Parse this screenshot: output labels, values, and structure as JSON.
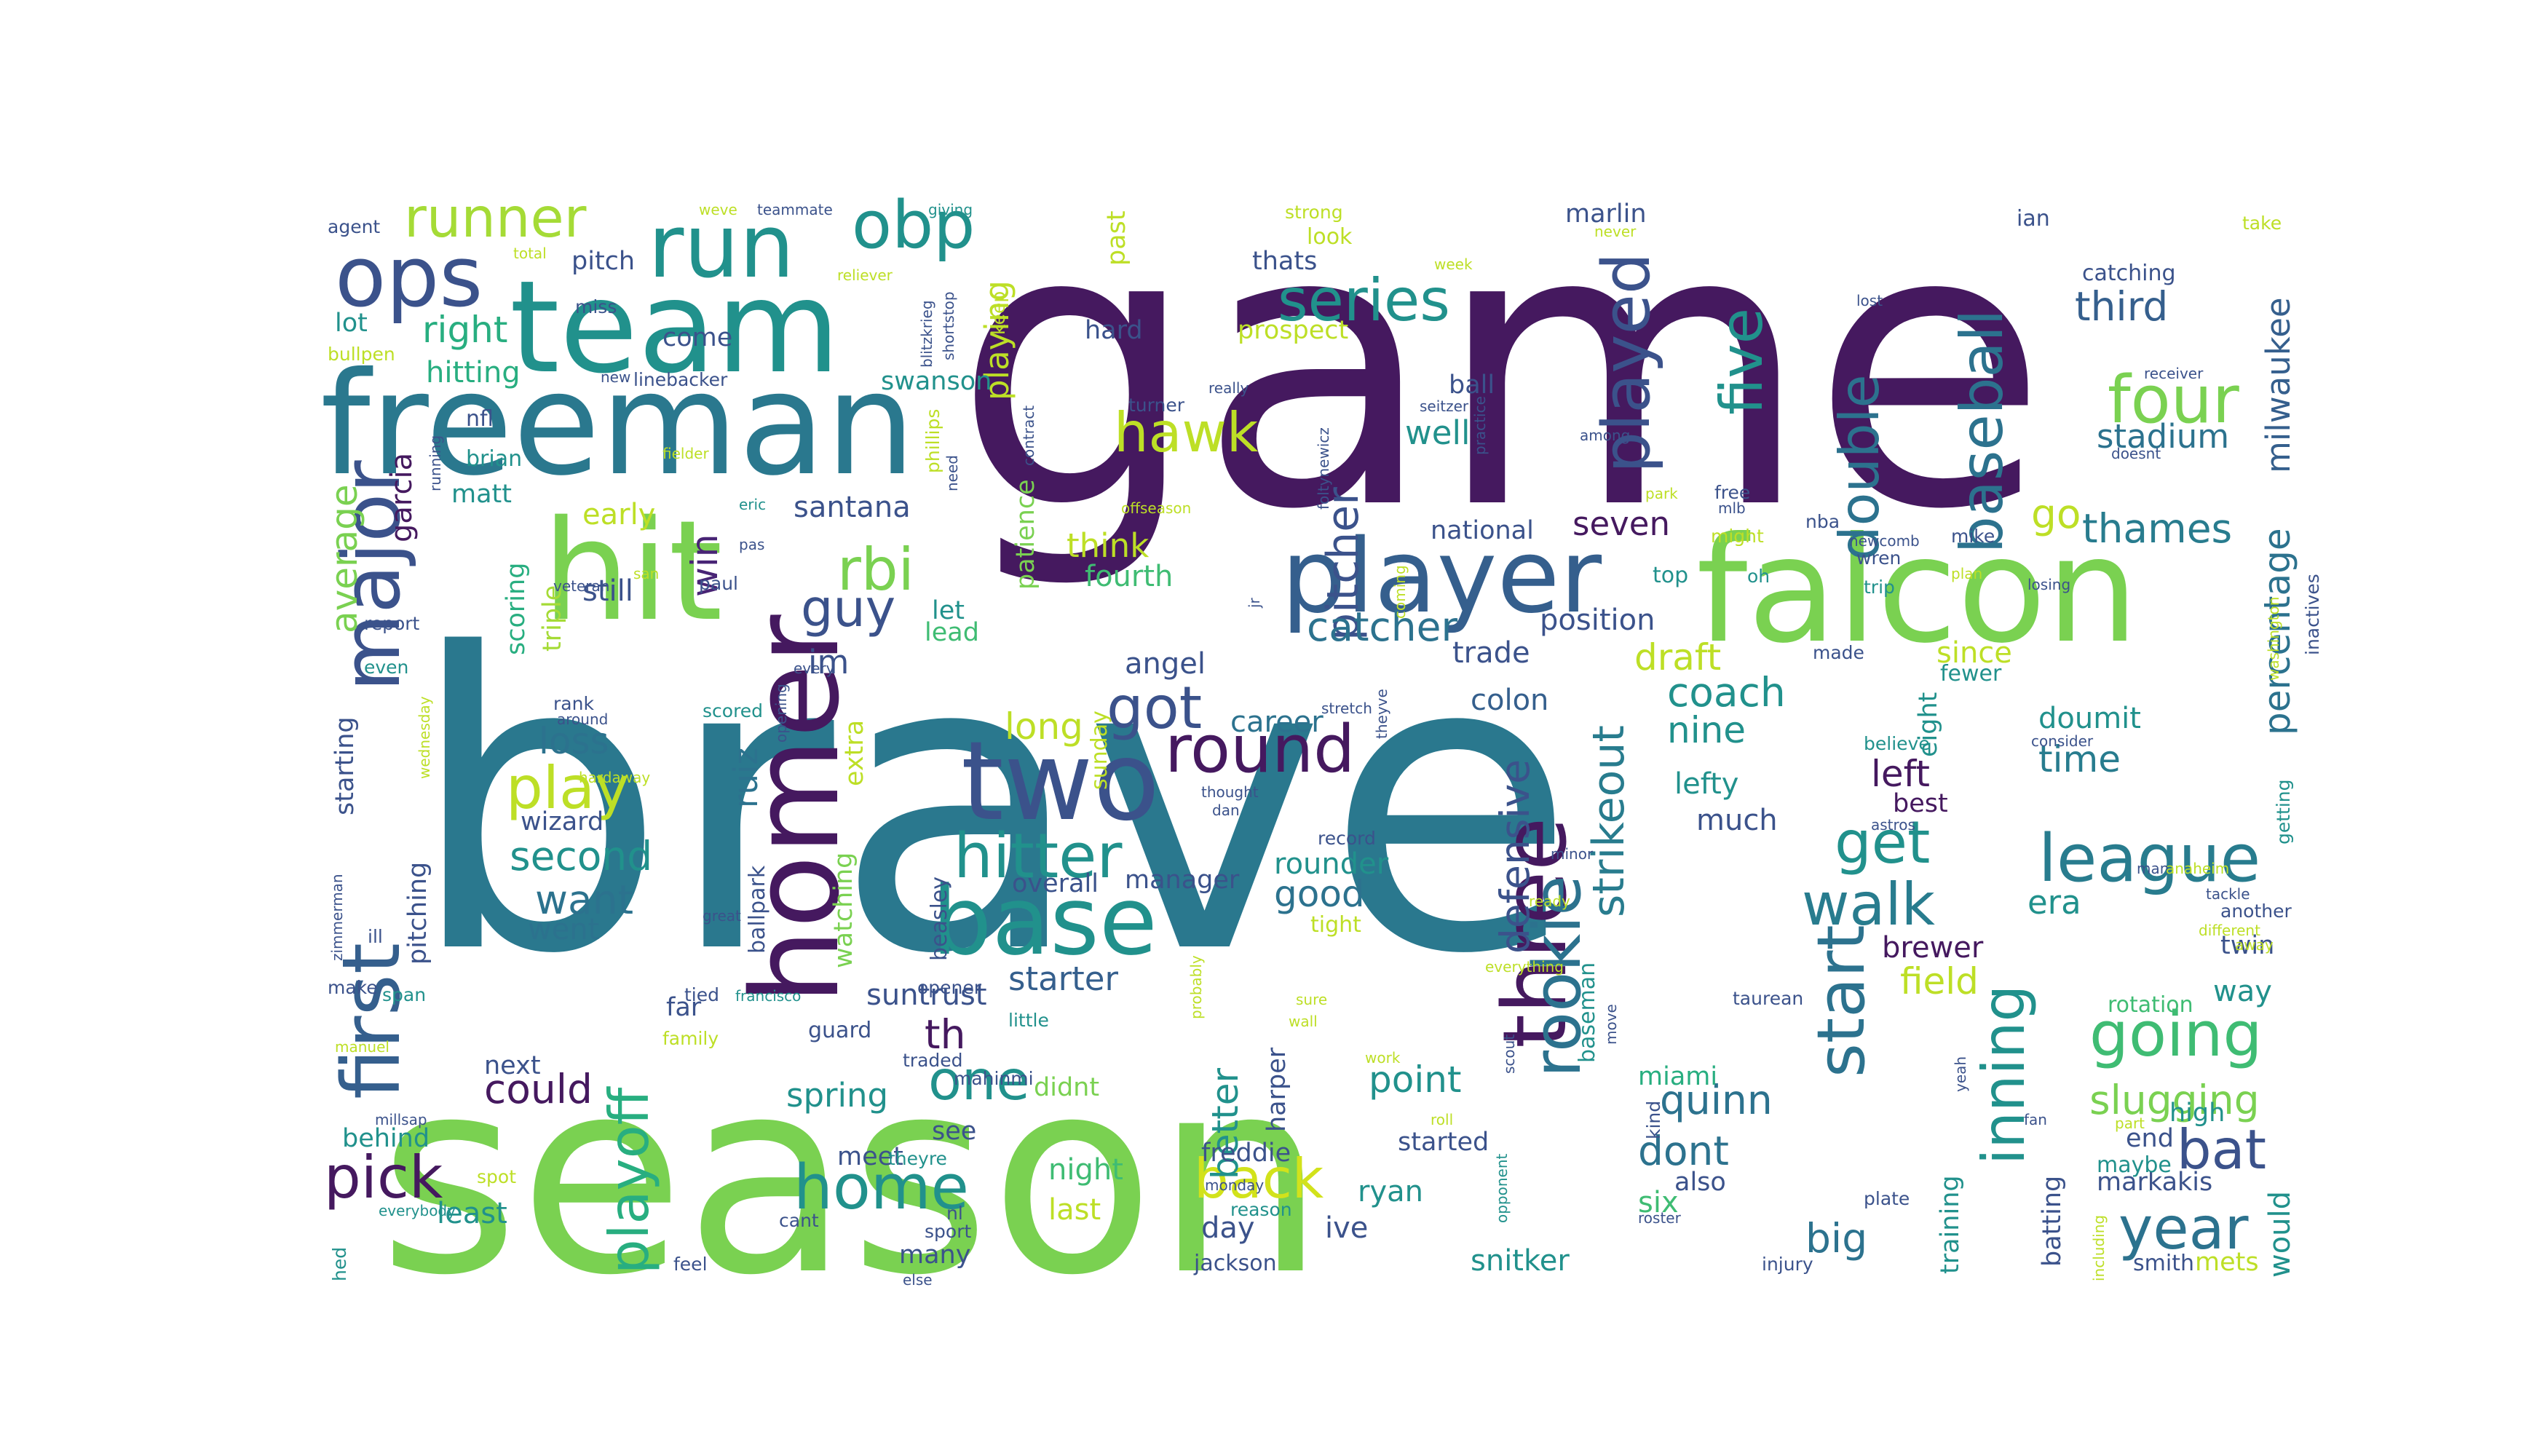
{
  "palette": {
    "deep_purple": "#45195f",
    "purple": "#482475",
    "indigo": "#414487",
    "slate_blue": "#3b528b",
    "steel_blue": "#355f8d",
    "blue_teal": "#2c728e",
    "teal": "#287c8e",
    "sea_teal": "#21918c",
    "green_teal": "#28ae80",
    "green": "#3fbc73",
    "lime_green": "#7ad151",
    "light_lime": "#a5db36",
    "yellow_green": "#bddf26",
    "yellow": "#d2e21b"
  },
  "words": [
    {
      "text": "brave",
      "color": "#2a788e"
    },
    {
      "text": "game",
      "color": "#45195f"
    },
    {
      "text": "season",
      "color": "#7ad151"
    },
    {
      "text": "freeman",
      "color": "#2a788e"
    },
    {
      "text": "team",
      "color": "#21918c"
    },
    {
      "text": "falcon",
      "color": "#7ad151"
    },
    {
      "text": "player",
      "color": "#355f8d"
    },
    {
      "text": "hit",
      "color": "#7ad151"
    },
    {
      "text": "homer",
      "color": "#45195f"
    },
    {
      "text": "base",
      "color": "#21918c"
    },
    {
      "text": "two",
      "color": "#3b528b"
    },
    {
      "text": "three",
      "color": "#45195f"
    },
    {
      "text": "run",
      "color": "#21918c"
    },
    {
      "text": "ops",
      "color": "#3b528b"
    },
    {
      "text": "obp",
      "color": "#21918c"
    },
    {
      "text": "runner",
      "color": "#a5db36"
    },
    {
      "text": "first",
      "color": "#355f8d"
    },
    {
      "text": "major",
      "color": "#3b528b"
    },
    {
      "text": "rbi",
      "color": "#7ad151"
    },
    {
      "text": "guy",
      "color": "#3b528b"
    },
    {
      "text": "series",
      "color": "#21918c"
    },
    {
      "text": "played",
      "color": "#3b528b"
    },
    {
      "text": "five",
      "color": "#21918c"
    },
    {
      "text": "baseball",
      "color": "#2c728e"
    },
    {
      "text": "four",
      "color": "#7ad151"
    },
    {
      "text": "double",
      "color": "#2c728e"
    },
    {
      "text": "go",
      "color": "#bddf26"
    },
    {
      "text": "hawk",
      "color": "#bddf26"
    },
    {
      "text": "pitcher",
      "color": "#3b528b"
    },
    {
      "text": "catcher",
      "color": "#2c728e"
    },
    {
      "text": "third",
      "color": "#355f8d"
    },
    {
      "text": "stadium",
      "color": "#2c728e"
    },
    {
      "text": "milwaukee",
      "color": "#355f8d"
    },
    {
      "text": "thames",
      "color": "#287c8e"
    },
    {
      "text": "percentage",
      "color": "#2c728e"
    },
    {
      "text": "got",
      "color": "#3b528b"
    },
    {
      "text": "round",
      "color": "#45195f"
    },
    {
      "text": "hitter",
      "color": "#21918c"
    },
    {
      "text": "rookie",
      "color": "#2c728e"
    },
    {
      "text": "start",
      "color": "#2c728e"
    },
    {
      "text": "strikeout",
      "color": "#287c8e"
    },
    {
      "text": "defensive",
      "color": "#3b528b"
    },
    {
      "text": "league",
      "color": "#287c8e"
    },
    {
      "text": "walk",
      "color": "#287c8e"
    },
    {
      "text": "get",
      "color": "#21918c"
    },
    {
      "text": "going",
      "color": "#3fbc73"
    },
    {
      "text": "slugging",
      "color": "#7ad151"
    },
    {
      "text": "bat",
      "color": "#3b528b"
    },
    {
      "text": "year",
      "color": "#2c728e"
    },
    {
      "text": "inning",
      "color": "#21918c"
    },
    {
      "text": "play",
      "color": "#bddf26"
    },
    {
      "text": "playoff",
      "color": "#28ae80"
    },
    {
      "text": "pick",
      "color": "#45195f"
    },
    {
      "text": "home",
      "color": "#21918c"
    },
    {
      "text": "back",
      "color": "#d2e21b"
    },
    {
      "text": "one",
      "color": "#21918c"
    },
    {
      "text": "could",
      "color": "#45195f"
    },
    {
      "text": "average",
      "color": "#7ad151"
    },
    {
      "text": "second",
      "color": "#21918c"
    },
    {
      "text": "want",
      "color": "#2c728e"
    },
    {
      "text": "loss",
      "color": "#2c728e"
    },
    {
      "text": "long",
      "color": "#bddf26"
    },
    {
      "text": "nine",
      "color": "#21918c"
    },
    {
      "text": "coach",
      "color": "#21918c"
    },
    {
      "text": "draft",
      "color": "#bddf26"
    },
    {
      "text": "seven",
      "color": "#45195f"
    },
    {
      "text": "time",
      "color": "#287c8e"
    },
    {
      "text": "doumit",
      "color": "#21918c"
    },
    {
      "text": "era",
      "color": "#21918c"
    },
    {
      "text": "field",
      "color": "#bddf26"
    },
    {
      "text": "brewer",
      "color": "#45195f"
    },
    {
      "text": "big",
      "color": "#2c728e"
    },
    {
      "text": "left",
      "color": "#45195f"
    },
    {
      "text": "best",
      "color": "#45195f"
    },
    {
      "text": "since",
      "color": "#bddf26"
    },
    {
      "text": "quinn",
      "color": "#2c728e"
    },
    {
      "text": "dont",
      "color": "#2c728e"
    },
    {
      "text": "six",
      "color": "#3fbc73"
    },
    {
      "text": "point",
      "color": "#21918c"
    },
    {
      "text": "better",
      "color": "#21918c"
    },
    {
      "text": "good",
      "color": "#2c728e"
    },
    {
      "text": "ryan",
      "color": "#21918c"
    },
    {
      "text": "th",
      "color": "#45195f"
    },
    {
      "text": "starter",
      "color": "#355f8d"
    },
    {
      "text": "think",
      "color": "#bddf26"
    },
    {
      "text": "fourth",
      "color": "#3fbc73"
    },
    {
      "text": "well",
      "color": "#21918c"
    },
    {
      "text": "playing",
      "color": "#bddf26"
    },
    {
      "text": "right",
      "color": "#28ae80"
    },
    {
      "text": "pitch",
      "color": "#3b528b"
    },
    {
      "text": "lot",
      "color": "#21918c"
    },
    {
      "text": "hitting",
      "color": "#28ae80"
    },
    {
      "text": "nfl",
      "color": "#3b528b"
    },
    {
      "text": "brian",
      "color": "#21918c"
    },
    {
      "text": "matt",
      "color": "#21918c"
    },
    {
      "text": "garcia",
      "color": "#45195f"
    },
    {
      "text": "win",
      "color": "#482475"
    },
    {
      "text": "santana",
      "color": "#3b528b"
    },
    {
      "text": "swanson",
      "color": "#21918c"
    },
    {
      "text": "early",
      "color": "#bddf26"
    },
    {
      "text": "still",
      "color": "#3b528b"
    },
    {
      "text": "im",
      "color": "#3b528b"
    },
    {
      "text": "ruiz",
      "color": "#2c728e"
    },
    {
      "text": "lead",
      "color": "#3fbc73"
    },
    {
      "text": "let",
      "color": "#21918c"
    },
    {
      "text": "scoring",
      "color": "#28ae80"
    },
    {
      "text": "triple",
      "color": "#a5db36"
    },
    {
      "text": "marlin",
      "color": "#3b528b"
    },
    {
      "text": "national",
      "color": "#3b528b"
    },
    {
      "text": "position",
      "color": "#3b528b"
    },
    {
      "text": "trade",
      "color": "#3b528b"
    },
    {
      "text": "angel",
      "color": "#3b528b"
    },
    {
      "text": "career",
      "color": "#2c728e"
    },
    {
      "text": "colon",
      "color": "#355f8d"
    },
    {
      "text": "lefty",
      "color": "#21918c"
    },
    {
      "text": "much",
      "color": "#3b528b"
    },
    {
      "text": "rounder",
      "color": "#21918c"
    },
    {
      "text": "went",
      "color": "#2c728e"
    },
    {
      "text": "wizard",
      "color": "#3b528b"
    },
    {
      "text": "spring",
      "color": "#21918c"
    },
    {
      "text": "next",
      "color": "#3b528b"
    },
    {
      "text": "didnt",
      "color": "#7ad151"
    },
    {
      "text": "started",
      "color": "#3b528b"
    },
    {
      "text": "suntrust",
      "color": "#3b528b"
    },
    {
      "text": "miami",
      "color": "#28ae80"
    },
    {
      "text": "also",
      "color": "#3b528b"
    },
    {
      "text": "end",
      "color": "#3b528b"
    },
    {
      "text": "high",
      "color": "#21918c"
    },
    {
      "text": "markakis",
      "color": "#3b528b"
    },
    {
      "text": "way",
      "color": "#21918c"
    },
    {
      "text": "twin",
      "color": "#3b528b"
    },
    {
      "text": "rotation",
      "color": "#3fbc73"
    },
    {
      "text": "maybe",
      "color": "#21918c"
    },
    {
      "text": "would",
      "color": "#21918c"
    },
    {
      "text": "mets",
      "color": "#bddf26"
    },
    {
      "text": "smith",
      "color": "#3b528b"
    },
    {
      "text": "snitker",
      "color": "#21918c"
    },
    {
      "text": "jackson",
      "color": "#3b528b"
    },
    {
      "text": "day",
      "color": "#3b528b"
    },
    {
      "text": "ive",
      "color": "#3b528b"
    },
    {
      "text": "last",
      "color": "#bddf26"
    },
    {
      "text": "night",
      "color": "#3fbc73"
    },
    {
      "text": "least",
      "color": "#21918c"
    },
    {
      "text": "behind",
      "color": "#21918c"
    },
    {
      "text": "meet",
      "color": "#3b528b"
    },
    {
      "text": "see",
      "color": "#3b528b"
    },
    {
      "text": "many",
      "color": "#3b528b"
    },
    {
      "text": "freddie",
      "color": "#3b528b"
    },
    {
      "text": "harper",
      "color": "#3b528b"
    },
    {
      "text": "training",
      "color": "#21918c"
    },
    {
      "text": "batting",
      "color": "#3b528b"
    },
    {
      "text": "tight",
      "color": "#bddf26"
    },
    {
      "text": "manager",
      "color": "#3b528b"
    },
    {
      "text": "overall",
      "color": "#3b528b"
    },
    {
      "text": "extra",
      "color": "#bddf26"
    },
    {
      "text": "watching",
      "color": "#7ad151"
    },
    {
      "text": "ballpark",
      "color": "#3b528b"
    },
    {
      "text": "pitching",
      "color": "#3b528b"
    },
    {
      "text": "starting",
      "color": "#3b528b"
    },
    {
      "text": "far",
      "color": "#3b528b"
    },
    {
      "text": "past",
      "color": "#bddf26"
    },
    {
      "text": "hard",
      "color": "#3b528b"
    },
    {
      "text": "prospect",
      "color": "#bddf26"
    },
    {
      "text": "thats",
      "color": "#3b528b"
    },
    {
      "text": "look",
      "color": "#bddf26"
    },
    {
      "text": "strong",
      "color": "#bddf26"
    },
    {
      "text": "ball",
      "color": "#3b528b"
    },
    {
      "text": "patience",
      "color": "#7ad151"
    },
    {
      "text": "keep",
      "color": "#bddf26"
    },
    {
      "text": "come",
      "color": "#3b528b"
    },
    {
      "text": "miss",
      "color": "#3b528b"
    },
    {
      "text": "agent",
      "color": "#3b528b"
    },
    {
      "text": "bullpen",
      "color": "#bddf26"
    },
    {
      "text": "ian",
      "color": "#3b528b"
    },
    {
      "text": "take",
      "color": "#bddf26"
    },
    {
      "text": "catching",
      "color": "#3b528b"
    },
    {
      "text": "free",
      "color": "#3b528b"
    },
    {
      "text": "nba",
      "color": "#3b528b"
    },
    {
      "text": "mike",
      "color": "#3b528b"
    },
    {
      "text": "top",
      "color": "#21918c"
    },
    {
      "text": "oh",
      "color": "#21918c"
    },
    {
      "text": "trip",
      "color": "#21918c"
    },
    {
      "text": "wren",
      "color": "#3b528b"
    },
    {
      "text": "newcomb",
      "color": "#3b528b"
    },
    {
      "text": "fewer",
      "color": "#21918c"
    },
    {
      "text": "eight",
      "color": "#21918c"
    },
    {
      "text": "believe",
      "color": "#21918c"
    },
    {
      "text": "kind",
      "color": "#3b528b"
    },
    {
      "text": "baseman",
      "color": "#21918c"
    },
    {
      "text": "francisco",
      "color": "#21918c"
    },
    {
      "text": "guard",
      "color": "#3b528b"
    },
    {
      "text": "traded",
      "color": "#3b528b"
    },
    {
      "text": "little",
      "color": "#21918c"
    },
    {
      "text": "family",
      "color": "#bddf26"
    },
    {
      "text": "tied",
      "color": "#3b528b"
    },
    {
      "text": "make",
      "color": "#3b528b"
    },
    {
      "text": "span",
      "color": "#21918c"
    },
    {
      "text": "report",
      "color": "#3b528b"
    },
    {
      "text": "even",
      "color": "#21918c"
    },
    {
      "text": "veteran",
      "color": "#3b528b"
    },
    {
      "text": "paul",
      "color": "#3b528b"
    },
    {
      "text": "reason",
      "color": "#21918c"
    },
    {
      "text": "cant",
      "color": "#3b528b"
    },
    {
      "text": "sport",
      "color": "#3b528b"
    },
    {
      "text": "nl",
      "color": "#3b528b"
    },
    {
      "text": "feel",
      "color": "#3b528b"
    },
    {
      "text": "else",
      "color": "#3b528b"
    },
    {
      "text": "hed",
      "color": "#21918c"
    },
    {
      "text": "everybody",
      "color": "#21918c"
    },
    {
      "text": "spot",
      "color": "#bddf26"
    },
    {
      "text": "millsap",
      "color": "#3b528b"
    },
    {
      "text": "manuel",
      "color": "#bddf26"
    },
    {
      "text": "opener",
      "color": "#3b528b"
    },
    {
      "text": "mahinmi",
      "color": "#3b528b"
    },
    {
      "text": "theyre",
      "color": "#21918c"
    },
    {
      "text": "injury",
      "color": "#3b528b"
    },
    {
      "text": "roster",
      "color": "#3b528b"
    },
    {
      "text": "plate",
      "color": "#3b528b"
    },
    {
      "text": "taurean",
      "color": "#3b528b"
    },
    {
      "text": "another",
      "color": "#3b528b"
    },
    {
      "text": "different",
      "color": "#bddf26"
    },
    {
      "text": "tackle",
      "color": "#3b528b"
    },
    {
      "text": "man",
      "color": "#3b528b"
    },
    {
      "text": "anaheim",
      "color": "#bddf26"
    },
    {
      "text": "getting",
      "color": "#21918c"
    },
    {
      "text": "washington",
      "color": "#bddf26"
    },
    {
      "text": "inactives",
      "color": "#3b528b"
    },
    {
      "text": "losing",
      "color": "#3b528b"
    },
    {
      "text": "plan",
      "color": "#bddf26"
    },
    {
      "text": "might",
      "color": "#bddf26"
    },
    {
      "text": "made",
      "color": "#3b528b"
    },
    {
      "text": "astros",
      "color": "#3b528b"
    },
    {
      "text": "consider",
      "color": "#3b528b"
    },
    {
      "text": "minor",
      "color": "#3b528b"
    },
    {
      "text": "ready",
      "color": "#bddf26"
    },
    {
      "text": "everything",
      "color": "#bddf26"
    },
    {
      "text": "scout",
      "color": "#3b528b"
    },
    {
      "text": "move",
      "color": "#3b528b"
    },
    {
      "text": "record",
      "color": "#3b528b"
    },
    {
      "text": "stretch",
      "color": "#3b528b"
    },
    {
      "text": "theyve",
      "color": "#3b528b"
    },
    {
      "text": "thought",
      "color": "#3b528b"
    },
    {
      "text": "dan",
      "color": "#3b528b"
    },
    {
      "text": "sunday",
      "color": "#bddf26"
    },
    {
      "text": "monday",
      "color": "#3b528b"
    },
    {
      "text": "beasley",
      "color": "#3b528b"
    },
    {
      "text": "opening",
      "color": "#3b528b"
    },
    {
      "text": "great",
      "color": "#3b528b"
    },
    {
      "text": "ill",
      "color": "#3b528b"
    },
    {
      "text": "zimmerman",
      "color": "#3b528b"
    },
    {
      "text": "hardaway",
      "color": "#bddf26"
    },
    {
      "text": "wednesday",
      "color": "#bddf26"
    },
    {
      "text": "rank",
      "color": "#3b528b"
    },
    {
      "text": "around",
      "color": "#3b528b"
    },
    {
      "text": "scored",
      "color": "#21918c"
    },
    {
      "text": "every",
      "color": "#3b528b"
    },
    {
      "text": "pas",
      "color": "#3b528b"
    },
    {
      "text": "san",
      "color": "#bddf26"
    },
    {
      "text": "eric",
      "color": "#21918c"
    },
    {
      "text": "need",
      "color": "#3b528b"
    },
    {
      "text": "phillips",
      "color": "#bddf26"
    },
    {
      "text": "contract",
      "color": "#3b528b"
    },
    {
      "text": "offseason",
      "color": "#bddf26"
    },
    {
      "text": "turner",
      "color": "#3b528b"
    },
    {
      "text": "really",
      "color": "#3b528b"
    },
    {
      "text": "foltynewicz",
      "color": "#3b528b"
    },
    {
      "text": "seitzer",
      "color": "#3b528b"
    },
    {
      "text": "practice",
      "color": "#3b528b"
    },
    {
      "text": "doesnt",
      "color": "#3b528b"
    },
    {
      "text": "receiver",
      "color": "#3b528b"
    },
    {
      "text": "lost",
      "color": "#3b528b"
    },
    {
      "text": "week",
      "color": "#bddf26"
    },
    {
      "text": "never",
      "color": "#bddf26"
    },
    {
      "text": "among",
      "color": "#3b528b"
    },
    {
      "text": "park",
      "color": "#bddf26"
    },
    {
      "text": "mlb",
      "color": "#3b528b"
    },
    {
      "text": "coming",
      "color": "#bddf26"
    },
    {
      "text": "jr",
      "color": "#3b528b"
    },
    {
      "text": "fielder",
      "color": "#bddf26"
    },
    {
      "text": "running",
      "color": "#3b528b"
    },
    {
      "text": "new",
      "color": "#3b528b"
    },
    {
      "text": "linebacker",
      "color": "#3b528b"
    },
    {
      "text": "shortstop",
      "color": "#3b528b"
    },
    {
      "text": "blitzkrieg",
      "color": "#3b528b"
    },
    {
      "text": "reliever",
      "color": "#bddf26"
    },
    {
      "text": "giving",
      "color": "#21918c"
    },
    {
      "text": "weve",
      "color": "#bddf26"
    },
    {
      "text": "teammate",
      "color": "#3b528b"
    },
    {
      "text": "total",
      "color": "#bddf26"
    },
    {
      "text": "probably",
      "color": "#bddf26"
    },
    {
      "text": "sure",
      "color": "#bddf26"
    },
    {
      "text": "wall",
      "color": "#bddf26"
    },
    {
      "text": "work",
      "color": "#bddf26"
    },
    {
      "text": "roll",
      "color": "#bddf26"
    },
    {
      "text": "opponent",
      "color": "#21918c"
    },
    {
      "text": "away",
      "color": "#bddf26"
    },
    {
      "text": "part",
      "color": "#bddf26"
    },
    {
      "text": "fan",
      "color": "#3b528b"
    },
    {
      "text": "yeah",
      "color": "#3b528b"
    },
    {
      "text": "including",
      "color": "#bddf26"
    }
  ]
}
